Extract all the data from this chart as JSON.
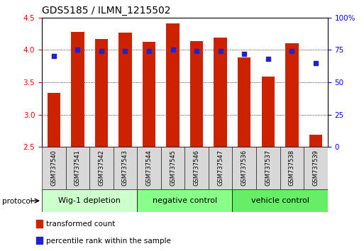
{
  "title": "GDS5185 / ILMN_1215502",
  "categories": [
    "GSM737540",
    "GSM737541",
    "GSM737542",
    "GSM737543",
    "GSM737544",
    "GSM737545",
    "GSM737546",
    "GSM737547",
    "GSM737536",
    "GSM737537",
    "GSM737538",
    "GSM737539"
  ],
  "bar_values": [
    3.33,
    4.28,
    4.17,
    4.27,
    4.12,
    4.41,
    4.14,
    4.19,
    3.88,
    3.59,
    4.1,
    2.69
  ],
  "blue_dot_values": [
    70,
    75,
    74,
    74,
    74,
    75,
    74,
    74,
    72,
    68,
    74,
    65
  ],
  "bar_color": "#cc2200",
  "dot_color": "#2222cc",
  "ylim_left": [
    2.5,
    4.5
  ],
  "ylim_right": [
    0,
    100
  ],
  "yticks_left": [
    2.5,
    3.0,
    3.5,
    4.0,
    4.5
  ],
  "yticks_right": [
    0,
    25,
    50,
    75,
    100
  ],
  "ytick_labels_right": [
    "0",
    "25",
    "50",
    "75",
    "100%"
  ],
  "groups": [
    {
      "label": "Wig-1 depletion",
      "start": 0,
      "end": 3,
      "color": "#ccffcc"
    },
    {
      "label": "negative control",
      "start": 4,
      "end": 7,
      "color": "#88ff88"
    },
    {
      "label": "vehicle control",
      "start": 8,
      "end": 11,
      "color": "#66ee66"
    }
  ],
  "protocol_label": "protocol",
  "legend_items": [
    {
      "color": "#cc2200",
      "label": "transformed count"
    },
    {
      "color": "#2222cc",
      "label": "percentile rank within the sample"
    }
  ],
  "background_color": "#ffffff",
  "plot_bg_color": "#ffffff",
  "bar_width": 0.55,
  "grid_color": "#000000",
  "title_fontsize": 10,
  "tick_fontsize": 7.5,
  "cat_fontsize": 6.0,
  "group_fontsize": 8,
  "legend_fontsize": 7.5
}
